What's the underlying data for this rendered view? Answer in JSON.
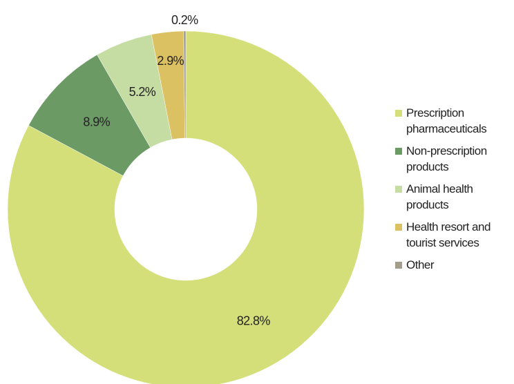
{
  "chart_data": {
    "type": "donut",
    "categories": [
      "Prescription pharmaceuticals",
      "Non-prescription products",
      "Animal health products",
      "Health resort and tourist services",
      "Other"
    ],
    "values": [
      82.8,
      8.9,
      5.2,
      2.9,
      0.2
    ],
    "value_labels": [
      "82.8%",
      "8.9%",
      "5.2%",
      "2.9%",
      "0.2%"
    ],
    "colors": [
      "#d4df7a",
      "#6b9a65",
      "#c5dca2",
      "#dcc163",
      "#a39d8e"
    ],
    "legend": "right"
  }
}
